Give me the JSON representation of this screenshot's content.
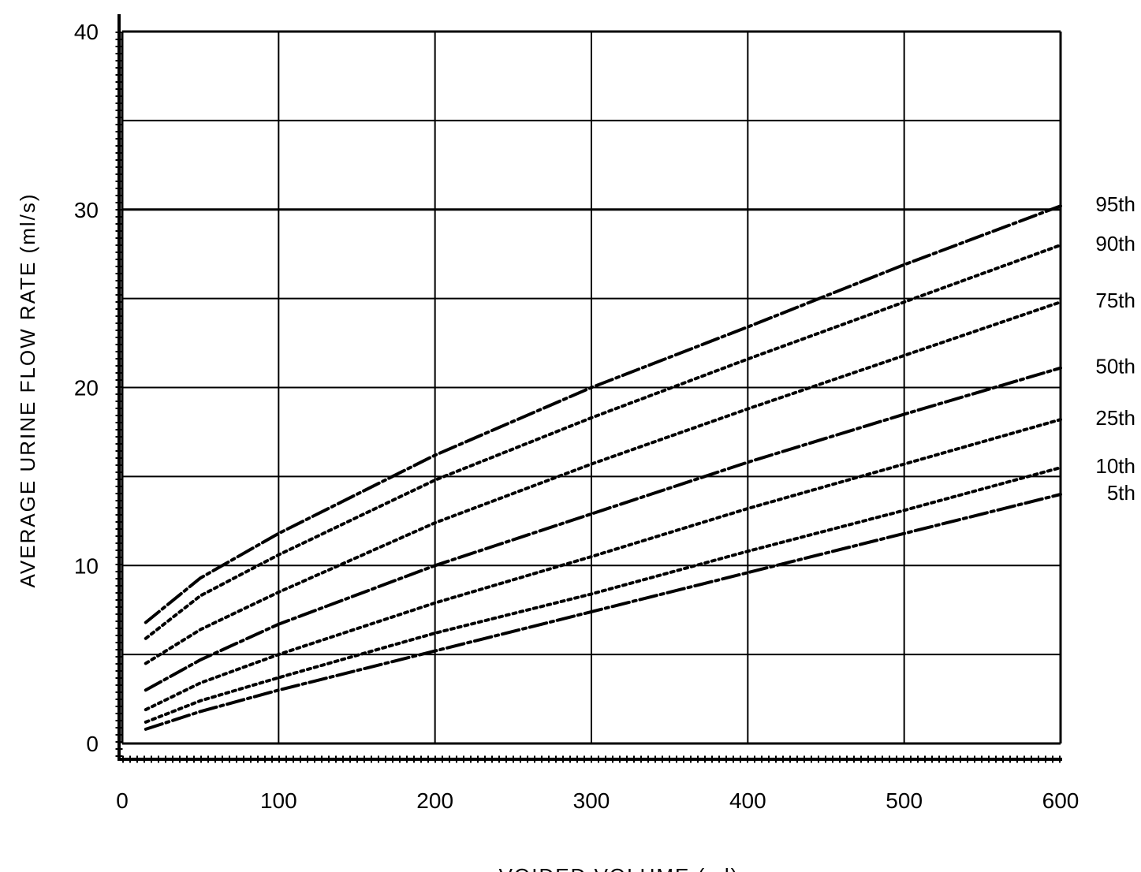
{
  "chart_data": {
    "type": "line",
    "title": "",
    "xlabel": "VOIDED VOLUME (ml)",
    "ylabel": "AVERAGE URINE FLOW RATE (ml/s)",
    "xlim": [
      0,
      600
    ],
    "ylim": [
      0,
      40
    ],
    "x_ticks": [
      "0",
      "100",
      "200",
      "300",
      "400",
      "500",
      "600"
    ],
    "y_ticks": [
      "0",
      "10",
      "20",
      "30",
      "40"
    ],
    "grid": true,
    "legend": "none",
    "series": [
      {
        "name": "95th",
        "x": [
          15,
          50,
          100,
          200,
          300,
          400,
          500,
          600
        ],
        "values": [
          6.8,
          9.3,
          11.8,
          16.2,
          20.0,
          23.4,
          26.9,
          30.2
        ],
        "style": "dash-dot"
      },
      {
        "name": "90th",
        "x": [
          15,
          50,
          100,
          200,
          300,
          400,
          500,
          600
        ],
        "values": [
          5.9,
          8.3,
          10.6,
          14.8,
          18.3,
          21.6,
          24.8,
          28.0
        ],
        "style": "dotted"
      },
      {
        "name": "75th",
        "x": [
          15,
          50,
          100,
          200,
          300,
          400,
          500,
          600
        ],
        "values": [
          4.5,
          6.4,
          8.5,
          12.4,
          15.7,
          18.8,
          21.8,
          24.8
        ],
        "style": "dotted"
      },
      {
        "name": "50th",
        "x": [
          15,
          50,
          100,
          200,
          300,
          400,
          500,
          600
        ],
        "values": [
          3.0,
          4.7,
          6.7,
          10.0,
          12.9,
          15.8,
          18.5,
          21.1
        ],
        "style": "dash-dot"
      },
      {
        "name": "25th",
        "x": [
          15,
          50,
          100,
          200,
          300,
          400,
          500,
          600
        ],
        "values": [
          1.9,
          3.4,
          5.0,
          7.9,
          10.5,
          13.2,
          15.7,
          18.2
        ],
        "style": "dotted"
      },
      {
        "name": "10th",
        "x": [
          15,
          50,
          100,
          200,
          300,
          400,
          500,
          600
        ],
        "values": [
          1.2,
          2.4,
          3.7,
          6.2,
          8.4,
          10.8,
          13.1,
          15.5
        ],
        "style": "dotted"
      },
      {
        "name": "5th",
        "x": [
          15,
          50,
          100,
          200,
          300,
          400,
          500,
          600
        ],
        "values": [
          0.8,
          1.8,
          3.0,
          5.2,
          7.4,
          9.6,
          11.8,
          14.0
        ],
        "style": "dash-dot"
      }
    ]
  }
}
